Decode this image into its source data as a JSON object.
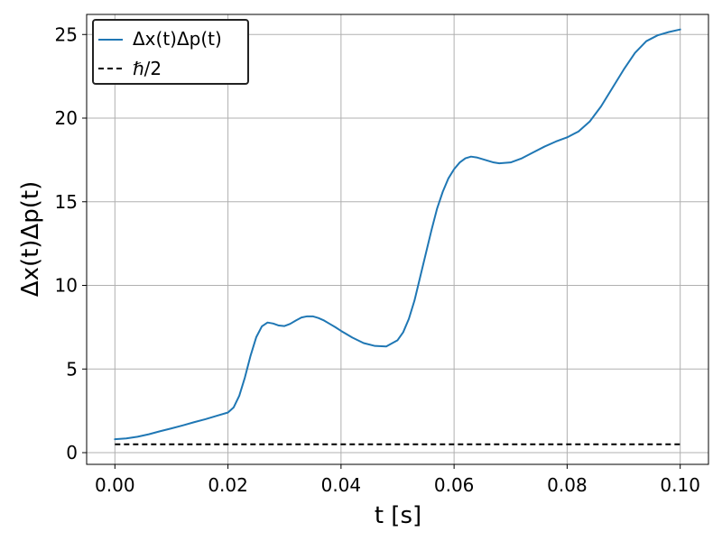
{
  "chart_data": {
    "type": "line",
    "xlabel": "t [s]",
    "ylabel": "Δx(t)Δp(t)",
    "xlim": [
      -0.005,
      0.105
    ],
    "ylim": [
      -0.7,
      26.2
    ],
    "xticks": [
      0.0,
      0.02,
      0.04,
      0.06,
      0.08,
      0.1
    ],
    "xtick_labels": [
      "0.00",
      "0.02",
      "0.04",
      "0.06",
      "0.08",
      "0.10"
    ],
    "yticks": [
      0,
      5,
      10,
      15,
      20,
      25
    ],
    "ytick_labels": [
      "0",
      "5",
      "10",
      "15",
      "20",
      "25"
    ],
    "grid": true,
    "legend_position": "top-left",
    "series": [
      {
        "name": "Δx(t)Δp(t)",
        "color": "#1f77b4",
        "style": "solid",
        "x": [
          0.0,
          0.002,
          0.004,
          0.006,
          0.008,
          0.01,
          0.012,
          0.014,
          0.016,
          0.018,
          0.02,
          0.021,
          0.022,
          0.023,
          0.024,
          0.025,
          0.026,
          0.027,
          0.028,
          0.029,
          0.03,
          0.031,
          0.032,
          0.033,
          0.034,
          0.035,
          0.036,
          0.037,
          0.038,
          0.039,
          0.04,
          0.042,
          0.044,
          0.046,
          0.048,
          0.05,
          0.051,
          0.052,
          0.053,
          0.054,
          0.055,
          0.056,
          0.057,
          0.058,
          0.059,
          0.06,
          0.061,
          0.062,
          0.063,
          0.064,
          0.065,
          0.066,
          0.067,
          0.068,
          0.07,
          0.072,
          0.074,
          0.076,
          0.078,
          0.08,
          0.082,
          0.084,
          0.086,
          0.088,
          0.09,
          0.092,
          0.094,
          0.096,
          0.098,
          0.1
        ],
        "y": [
          0.8,
          0.85,
          0.95,
          1.1,
          1.28,
          1.45,
          1.63,
          1.82,
          2.0,
          2.2,
          2.4,
          2.7,
          3.4,
          4.5,
          5.8,
          6.9,
          7.55,
          7.78,
          7.72,
          7.6,
          7.57,
          7.7,
          7.9,
          8.08,
          8.15,
          8.15,
          8.05,
          7.9,
          7.7,
          7.5,
          7.28,
          6.88,
          6.55,
          6.38,
          6.35,
          6.72,
          7.2,
          8.0,
          9.1,
          10.5,
          11.9,
          13.3,
          14.6,
          15.6,
          16.4,
          16.95,
          17.35,
          17.6,
          17.7,
          17.65,
          17.55,
          17.45,
          17.35,
          17.3,
          17.35,
          17.6,
          17.95,
          18.3,
          18.6,
          18.85,
          19.2,
          19.8,
          20.7,
          21.8,
          22.9,
          23.9,
          24.6,
          24.95,
          25.15,
          25.3
        ]
      },
      {
        "name": "ℏ/2",
        "color": "#000000",
        "style": "dashed",
        "x": [
          0.0,
          0.1
        ],
        "y": [
          0.5,
          0.5
        ]
      }
    ]
  }
}
